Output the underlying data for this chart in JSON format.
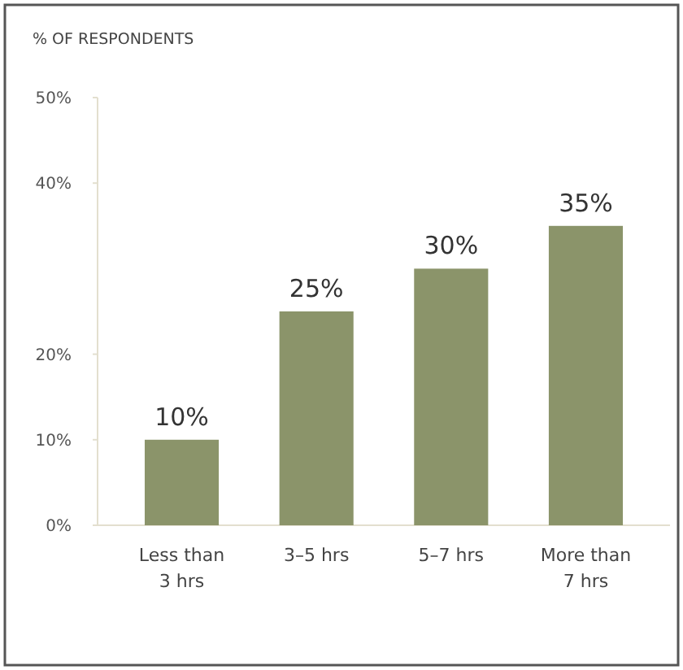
{
  "chart_data": {
    "type": "bar",
    "title": "% OF RESPONDENTS",
    "categories": [
      "Less than 3 hrs",
      "3–5 hrs",
      "5–7 hrs",
      "More than 7 hrs"
    ],
    "values": [
      10,
      25,
      30,
      35
    ],
    "value_labels": [
      "10%",
      "25%",
      "30%",
      "35%"
    ],
    "color": "#8b946a",
    "ylim": [
      0,
      50
    ],
    "yticks": [
      {
        "value": 0,
        "label": "0%"
      },
      {
        "value": 10,
        "label": "10%"
      },
      {
        "value": 20,
        "label": "20%"
      },
      {
        "value": 40,
        "label": "40%"
      },
      {
        "value": 50,
        "label": "50%"
      }
    ],
    "grid": false
  }
}
